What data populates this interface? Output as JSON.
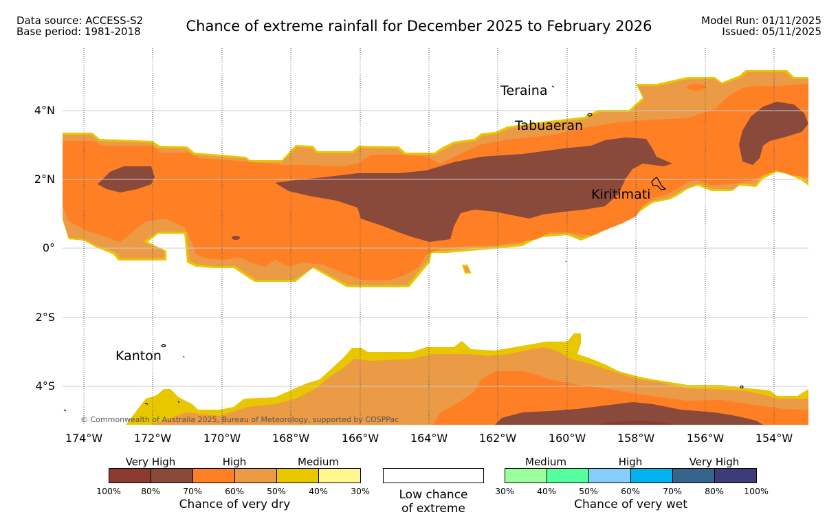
{
  "header": {
    "data_source": "Data source: ACCESS-S2",
    "base_period": "Base period: 1981-2018",
    "title": "Chance of extreme rainfall for December 2025 to February 2026",
    "model_run": "Model Run: 01/11/2025",
    "issued": "Issued: 05/11/2025"
  },
  "map": {
    "lat_labels": [
      "4°N",
      "2°N",
      "0°",
      "2°S",
      "4°S"
    ],
    "lon_labels": [
      "174°W",
      "172°W",
      "170°W",
      "168°W",
      "166°W",
      "164°W",
      "162°W",
      "160°W",
      "158°W",
      "156°W",
      "154°W"
    ],
    "places": [
      "Teraina",
      "Tabuaeran",
      "Kiritimati",
      "Kanton"
    ],
    "copyright": "© Commonwealth of Australia 2025, Bureau of Meteorology, supported by COSPPac",
    "colors": {
      "dry_100_80": "#8b3a2f",
      "dry_80_70": "#89493b",
      "dry_70_60": "#ff7f24",
      "dry_60_50": "#eb9a46",
      "dry_50_40": "#e9c700",
      "dry_40_30": "#fff68f"
    }
  },
  "legend": {
    "dry": {
      "headers": [
        "Very High",
        "High",
        "Medium"
      ],
      "ticks": [
        "100%",
        "80%",
        "70%",
        "60%",
        "50%",
        "40%",
        "30%"
      ],
      "caption": "Chance of very dry",
      "colors": [
        "#8b3a2f",
        "#89493b",
        "#ff7f24",
        "#eb9a46",
        "#e9c700",
        "#fff68f"
      ]
    },
    "neutral": {
      "caption_line1": "Low chance",
      "caption_line2": "of extreme"
    },
    "wet": {
      "headers": [
        "Medium",
        "High",
        "Very High"
      ],
      "ticks": [
        "30%",
        "40%",
        "50%",
        "60%",
        "70%",
        "80%",
        "100%"
      ],
      "caption": "Chance of very wet",
      "colors": [
        "#9aff9a",
        "#54ff9f",
        "#87cefa",
        "#00b2ee",
        "#36648b",
        "#3d3b78"
      ]
    }
  }
}
